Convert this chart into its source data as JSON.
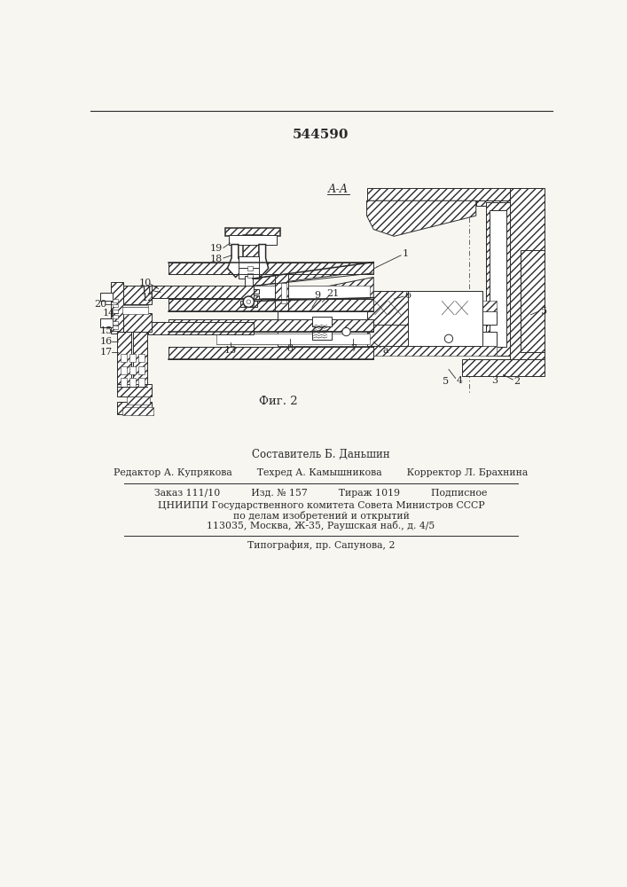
{
  "patent_number": "544590",
  "fig_label": "Фиг. 2",
  "section_label": "А-А",
  "bg_color": "#f5f5f0",
  "line_color": "#2a2a2a",
  "footer": [
    "Составитель Б. Даньшин",
    "Редактор А. Купрякова        Техред А. Камышникова        Корректор Л. Брахнина",
    "Заказ 111/10          Изд. № 157          Тираж 1019          Подписное",
    "ЦНИИПИ Государственного комитета Совета Министров СССР",
    "по делам изобретений и открытий",
    "113035, Москва, Ж-35, Раушская наб., д. 4/5",
    "Типография, пр. Сапунова, 2"
  ],
  "page_bg": "#f7f6f1",
  "hatch_density": "////"
}
